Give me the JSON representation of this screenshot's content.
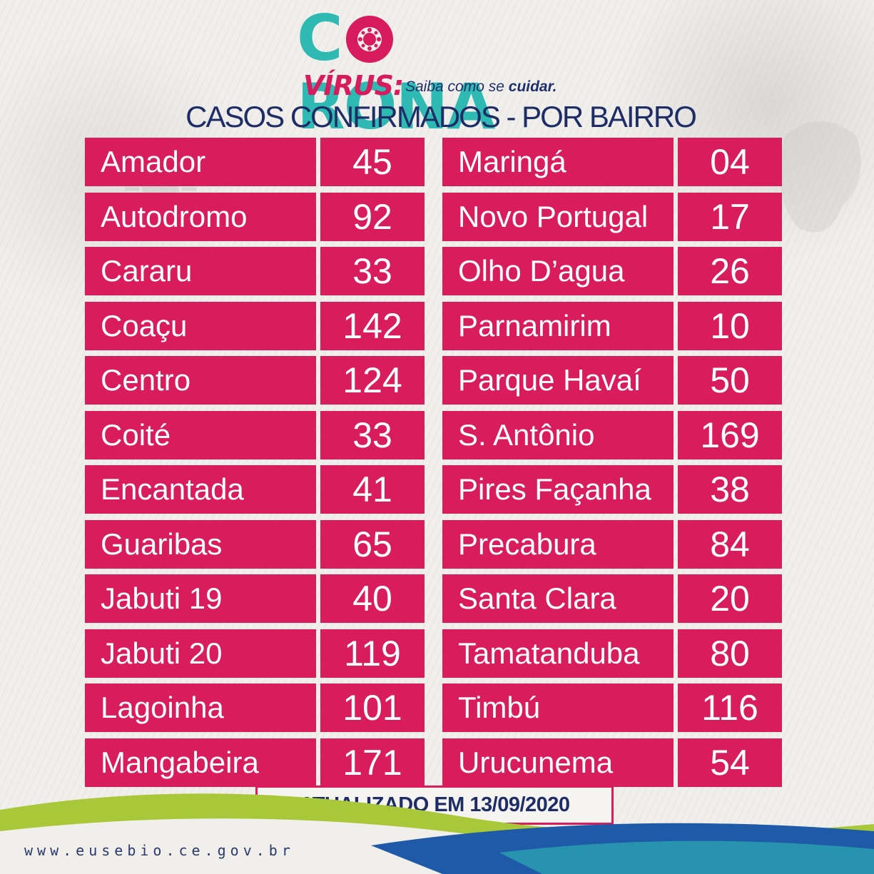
{
  "logo": {
    "corona": [
      "C",
      "RONA"
    ],
    "virus": "VÍRUS:",
    "tagline_prefix": "Saiba como se",
    "tagline_emph": "cuidar."
  },
  "subtitle": "CASOS CONFIRMADOS - POR BAIRRO",
  "left_rows": [
    {
      "name": "Amador",
      "count": "45"
    },
    {
      "name": "Autodromo",
      "count": "92"
    },
    {
      "name": "Cararu",
      "count": "33"
    },
    {
      "name": "Coaçu",
      "count": "142"
    },
    {
      "name": "Centro",
      "count": "124"
    },
    {
      "name": "Coité",
      "count": "33"
    },
    {
      "name": "Encantada",
      "count": "41"
    },
    {
      "name": "Guaribas",
      "count": "65"
    },
    {
      "name": "Jabuti 19",
      "count": "40"
    },
    {
      "name": "Jabuti 20",
      "count": "119"
    },
    {
      "name": "Lagoinha",
      "count": "101"
    },
    {
      "name": "Mangabeira",
      "count": "171"
    }
  ],
  "right_rows": [
    {
      "name": "Maringá",
      "count": "04"
    },
    {
      "name": "Novo Portugal",
      "count": "17"
    },
    {
      "name": "Olho D’agua",
      "count": "26"
    },
    {
      "name": "Parnamirim",
      "count": "10"
    },
    {
      "name": "Parque Havaí",
      "count": "50"
    },
    {
      "name": "S. Antônio",
      "count": "169"
    },
    {
      "name": "Pires Façanha",
      "count": "38"
    },
    {
      "name": "Precabura",
      "count": "84"
    },
    {
      "name": "Santa Clara",
      "count": "20"
    },
    {
      "name": "Tamatanduba",
      "count": "80"
    },
    {
      "name": "Timbú",
      "count": "116"
    },
    {
      "name": "Urucunema",
      "count": "54"
    }
  ],
  "updated": "ATUALIZADO EM 13/09/2020",
  "website": "www.eusebio.ce.gov.br",
  "colors": {
    "accent": "#d91d5c",
    "teal": "#2fb9b3",
    "navy": "#1e2d66",
    "background": "#f1efeb"
  }
}
